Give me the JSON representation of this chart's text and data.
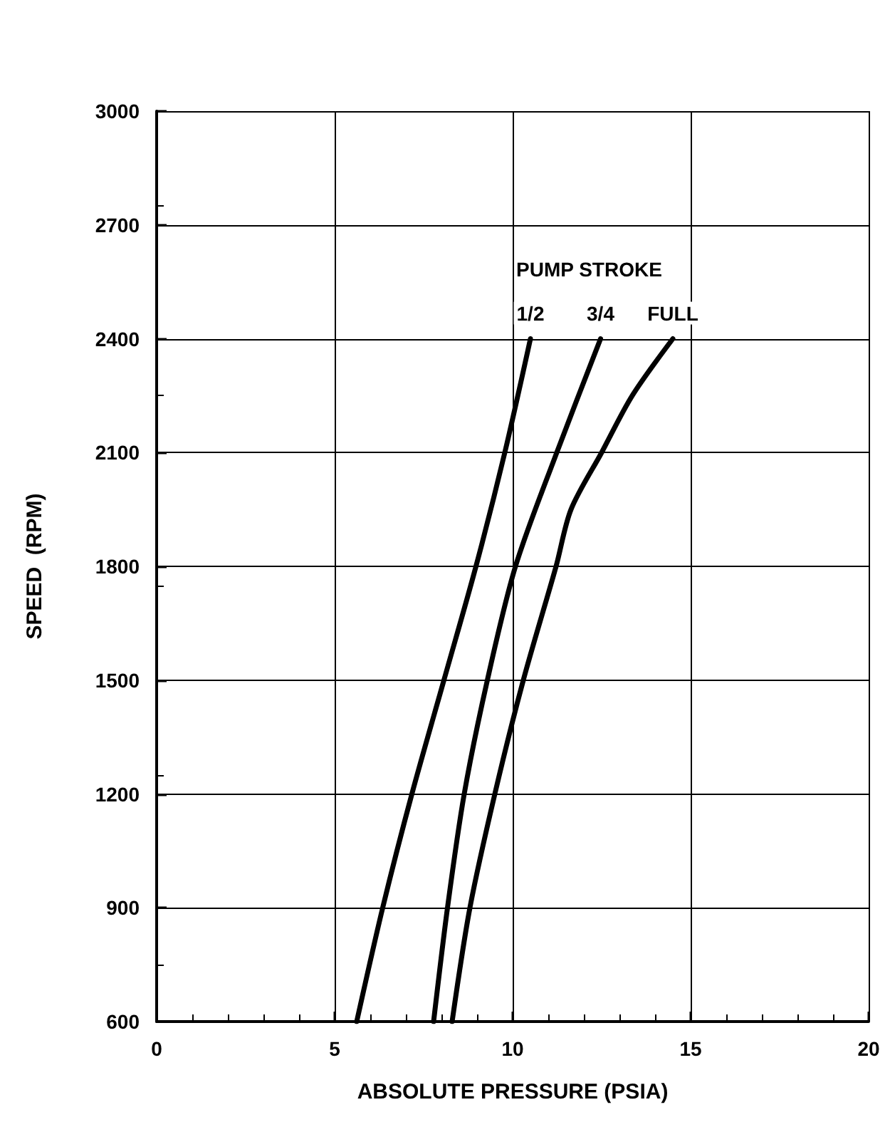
{
  "chart_data": {
    "type": "line",
    "xlabel": "ABSOLUTE PRESSURE (PSIA)",
    "ylabel": "SPEED  (RPM)",
    "legend_title": "PUMP STROKE",
    "series": [
      {
        "name": "1/2",
        "color": "#000000",
        "x": [
          5.62,
          6.35,
          7.17,
          8.07,
          8.97,
          9.78,
          10.5
        ],
        "values": [
          600,
          900,
          1200,
          1500,
          1800,
          2100,
          2400
        ]
      },
      {
        "name": "3/4",
        "color": "#000000",
        "x": [
          7.78,
          8.17,
          8.64,
          9.29,
          10.08,
          11.24,
          12.47
        ],
        "values": [
          600,
          900,
          1200,
          1500,
          1800,
          2100,
          2400
        ]
      },
      {
        "name": "FULL",
        "color": "#000000",
        "x": [
          8.3,
          8.8,
          9.5,
          10.3,
          11.22,
          11.64,
          12.5,
          13.36,
          14.5
        ],
        "values": [
          600,
          900,
          1200,
          1500,
          1800,
          1950,
          2100,
          2250,
          2400
        ]
      }
    ],
    "xlim": [
      0,
      20
    ],
    "xticks": [
      0,
      5,
      10,
      15,
      20
    ],
    "ylim": [
      600,
      3000
    ],
    "yticks": [
      600,
      900,
      1200,
      1500,
      1800,
      2100,
      2400,
      2700,
      3000
    ],
    "grid": true,
    "legend": false,
    "marker": "none",
    "line_style": "solid"
  }
}
